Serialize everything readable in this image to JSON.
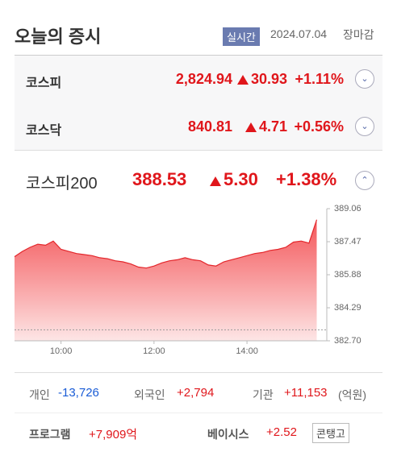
{
  "header": {
    "title": "오늘의 증시",
    "badge": "실시간",
    "date": "2024.07.04",
    "status": "장마감"
  },
  "indices": [
    {
      "name": "코스피",
      "value": "2,824.94",
      "change": "30.93",
      "rate": "+1.11%"
    },
    {
      "name": "코스닥",
      "value": "840.81",
      "change": "4.71",
      "rate": "+0.56%"
    },
    {
      "name": "코스피200",
      "value": "388.53",
      "change": "5.30",
      "rate": "+1.38%"
    }
  ],
  "chart_data": {
    "type": "area",
    "color": "#e3262b",
    "x": [
      "09:00",
      "09:10",
      "09:20",
      "09:30",
      "09:40",
      "09:50",
      "10:00",
      "10:10",
      "10:20",
      "10:30",
      "10:40",
      "10:50",
      "11:00",
      "11:10",
      "11:20",
      "11:30",
      "11:40",
      "11:50",
      "12:00",
      "12:10",
      "12:20",
      "12:30",
      "12:40",
      "12:50",
      "13:00",
      "13:10",
      "13:20",
      "13:30",
      "13:40",
      "13:50",
      "14:00",
      "14:10",
      "14:20",
      "14:30",
      "14:40",
      "14:50",
      "15:00",
      "15:10",
      "15:20",
      "15:30"
    ],
    "values": [
      386.75,
      387.0,
      387.2,
      387.35,
      387.3,
      387.5,
      387.1,
      387.0,
      386.9,
      386.85,
      386.8,
      386.7,
      386.65,
      386.55,
      386.5,
      386.4,
      386.25,
      386.2,
      386.3,
      386.45,
      386.55,
      386.6,
      386.7,
      386.6,
      386.55,
      386.35,
      386.3,
      386.5,
      386.6,
      386.7,
      386.8,
      386.9,
      386.95,
      387.05,
      387.1,
      387.2,
      387.45,
      387.5,
      387.4,
      388.53
    ],
    "reference_line": 383.23,
    "xlim": [
      "09:00",
      "15:43"
    ],
    "xticks": [
      "10:00",
      "12:00",
      "14:00"
    ],
    "ylim": [
      382.7,
      389.06
    ],
    "yticks": [
      {
        "value": 382.7,
        "label": "382.70"
      },
      384.29,
      385.88,
      387.47,
      389.06
    ]
  },
  "investors": {
    "items": [
      {
        "label": "개인",
        "value": "-13,726"
      },
      {
        "label": "외국인",
        "value": "+2,794"
      },
      {
        "label": "기관",
        "value": "+11,153"
      }
    ],
    "unit": "(억원)"
  },
  "program": {
    "label": "프로그램",
    "value": "+7,909억",
    "basis_label": "베이시스",
    "basis_value": "+2.52",
    "state": "콘탱고"
  }
}
